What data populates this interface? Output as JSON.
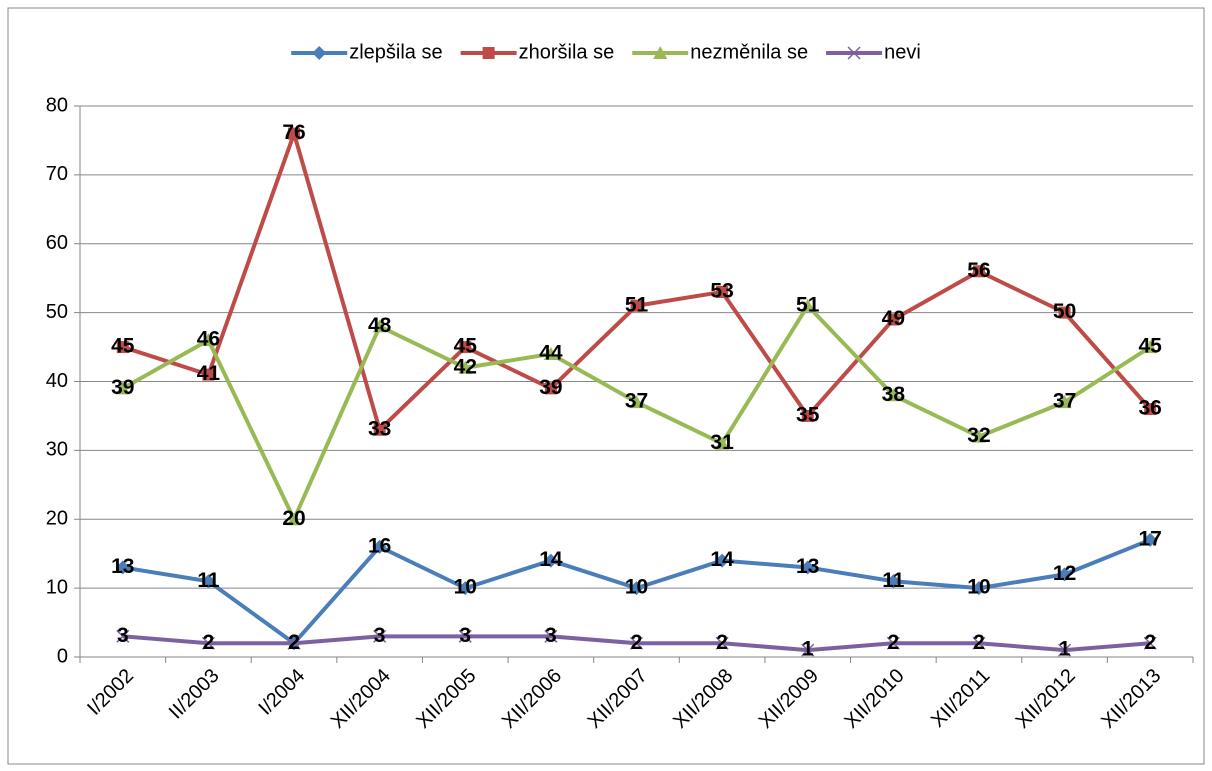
{
  "chart_data": {
    "type": "line",
    "categories": [
      "I/2002",
      "II/2003",
      "I/2004",
      "XII/2004",
      "XII/2005",
      "XII/2006",
      "XII/2007",
      "XII/2008",
      "XII/2009",
      "XII/2010",
      "XII/2011",
      "XII/2012",
      "XII/2013"
    ],
    "series": [
      {
        "name": "zlepšila se",
        "color": "#4a7ebb",
        "marker": "diamond",
        "values": [
          13,
          11,
          2,
          16,
          10,
          14,
          10,
          14,
          13,
          11,
          10,
          12,
          17
        ]
      },
      {
        "name": "zhoršila se",
        "color": "#be4b48",
        "marker": "square",
        "values": [
          45,
          41,
          76,
          33,
          45,
          39,
          51,
          53,
          35,
          49,
          56,
          50,
          36
        ]
      },
      {
        "name": "nezměnila se",
        "color": "#98b954",
        "marker": "triangle",
        "values": [
          39,
          46,
          20,
          48,
          42,
          44,
          37,
          31,
          51,
          38,
          32,
          37,
          45
        ]
      },
      {
        "name": "nevi",
        "color": "#7d60a0",
        "marker": "x",
        "values": [
          3,
          2,
          2,
          3,
          3,
          3,
          2,
          2,
          1,
          2,
          2,
          1,
          2
        ]
      }
    ],
    "ylim": [
      0,
      80
    ],
    "yticks": [
      0,
      10,
      20,
      30,
      40,
      50,
      60,
      70,
      80
    ],
    "grid": true,
    "legend": "top"
  }
}
